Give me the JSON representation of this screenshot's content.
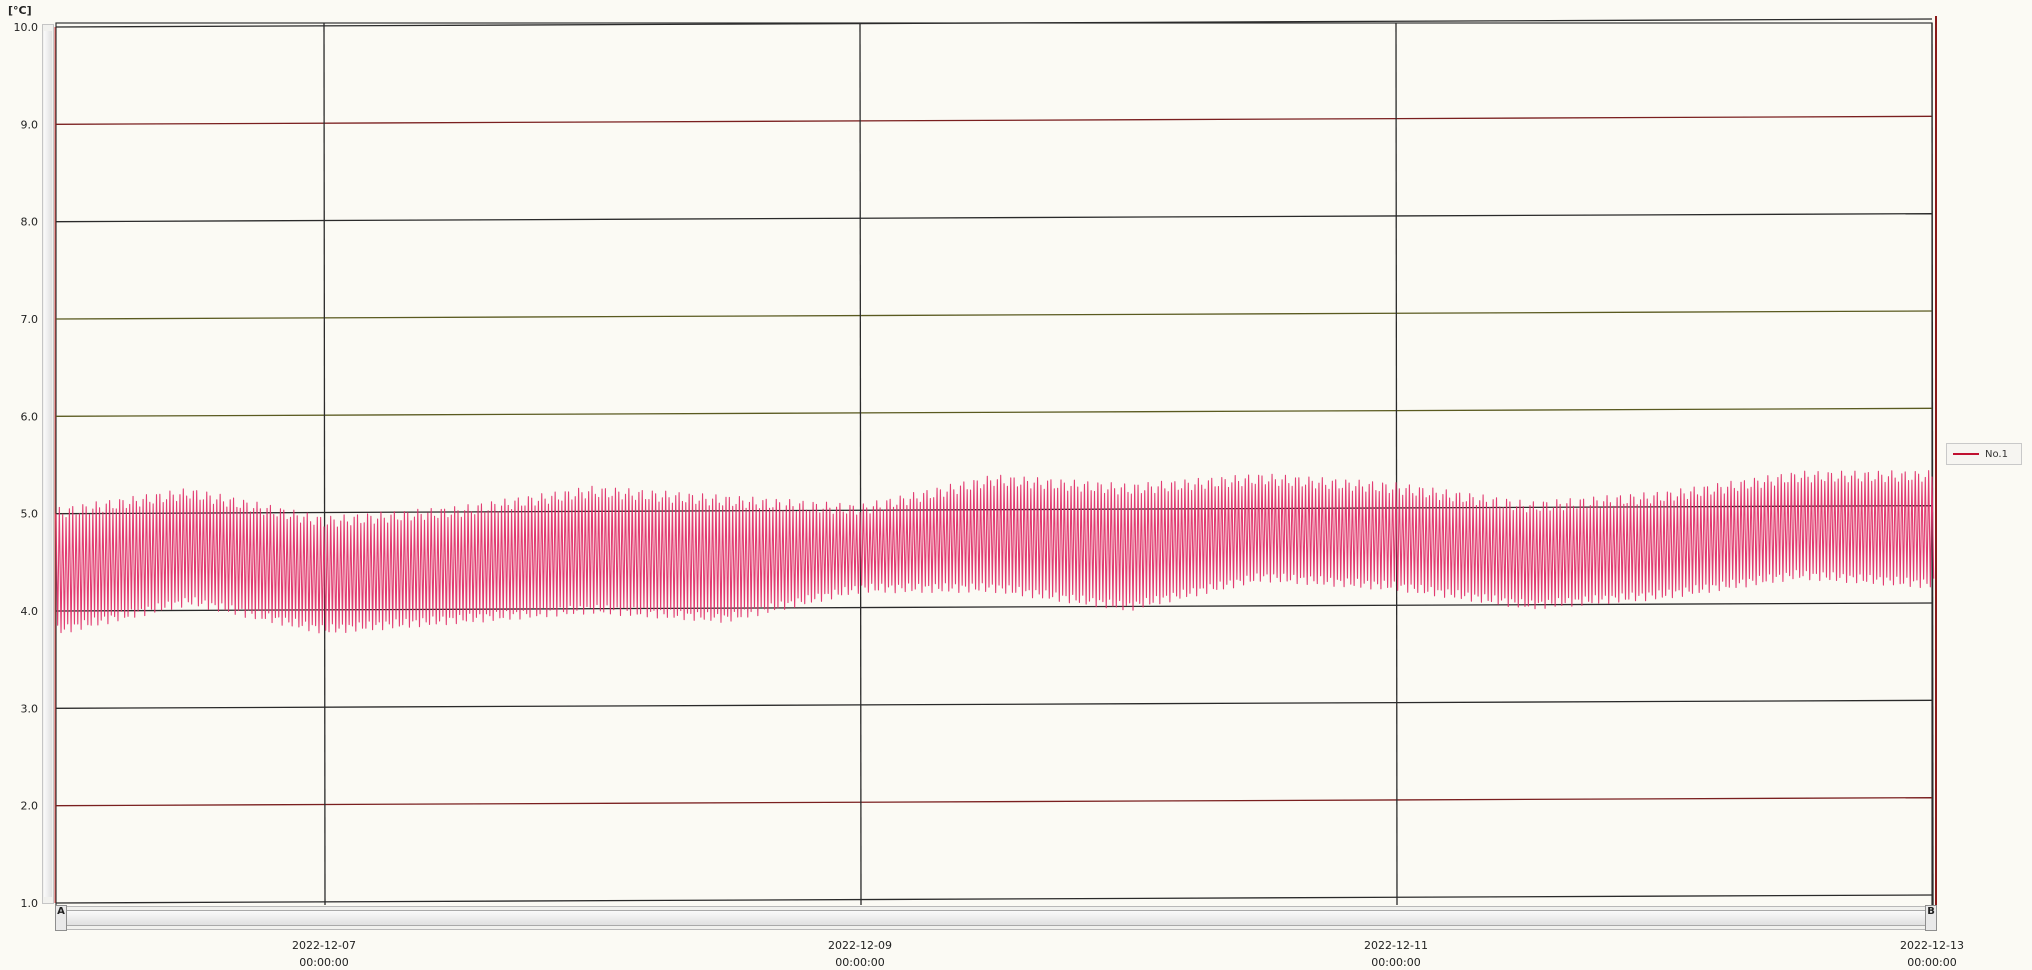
{
  "unit_label": "[°C]",
  "legend": {
    "label": "No.1",
    "color": "#c01030"
  },
  "scroll_labels": {
    "left": "A",
    "right": "B"
  },
  "colors": {
    "line": "#e0306a",
    "grid": "#2a2a2a",
    "background": "#fbfaf4"
  },
  "chart_data": {
    "type": "line",
    "title": "",
    "xlabel": "",
    "ylabel": "[°C]",
    "ylim": [
      1.0,
      10.0
    ],
    "yticks": [
      "10.0",
      "9.0",
      "8.0",
      "7.0",
      "6.0",
      "5.0",
      "4.0",
      "3.0",
      "2.0",
      "1.0"
    ],
    "xticks": [
      {
        "date": "2022-12-07",
        "time": "00:00:00"
      },
      {
        "date": "2022-12-09",
        "time": "00:00:00"
      },
      {
        "date": "2022-12-11",
        "time": "00:00:00"
      },
      {
        "date": "2022-12-13",
        "time": "00:00:00"
      }
    ],
    "xrange": [
      "2022-12-06 00:00:00",
      "2022-12-13 00:00:00"
    ],
    "grid": true,
    "legend_position": "right",
    "series": [
      {
        "name": "No.1",
        "description_envelope": {
          "time_hours": [
            0,
            12,
            24,
            36,
            48,
            60,
            72,
            84,
            96,
            108,
            120,
            132,
            144,
            156,
            168
          ],
          "max_c": [
            5.0,
            5.2,
            4.9,
            5.0,
            5.2,
            5.1,
            5.0,
            5.3,
            5.2,
            5.3,
            5.2,
            5.0,
            5.1,
            5.3,
            5.3
          ],
          "min_c": [
            3.8,
            4.1,
            3.8,
            3.9,
            4.0,
            3.9,
            4.2,
            4.2,
            4.0,
            4.3,
            4.2,
            4.0,
            4.1,
            4.3,
            4.2
          ]
        }
      }
    ]
  }
}
